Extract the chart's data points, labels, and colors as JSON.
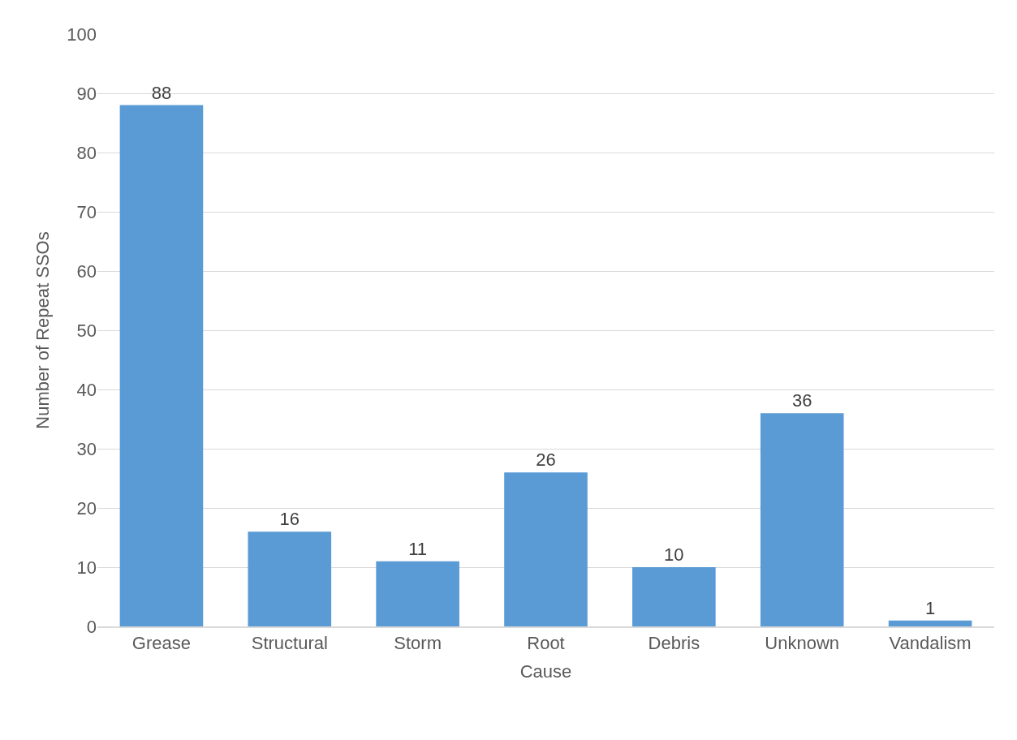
{
  "chart_data": {
    "type": "bar",
    "xlabel": "Cause",
    "ylabel": "Number of Repeat SSOs",
    "categories": [
      "Grease",
      "Structural",
      "Storm",
      "Root",
      "Debris",
      "Unknown",
      "Vandalism"
    ],
    "values": [
      88,
      16,
      11,
      26,
      10,
      36,
      1
    ],
    "color": "#5b9bd5",
    "ylim": [
      0,
      100
    ],
    "yticks": [
      0,
      10,
      20,
      30,
      40,
      50,
      60,
      70,
      80,
      90,
      100
    ],
    "grid": "y",
    "data_labels": true,
    "legend": false
  }
}
